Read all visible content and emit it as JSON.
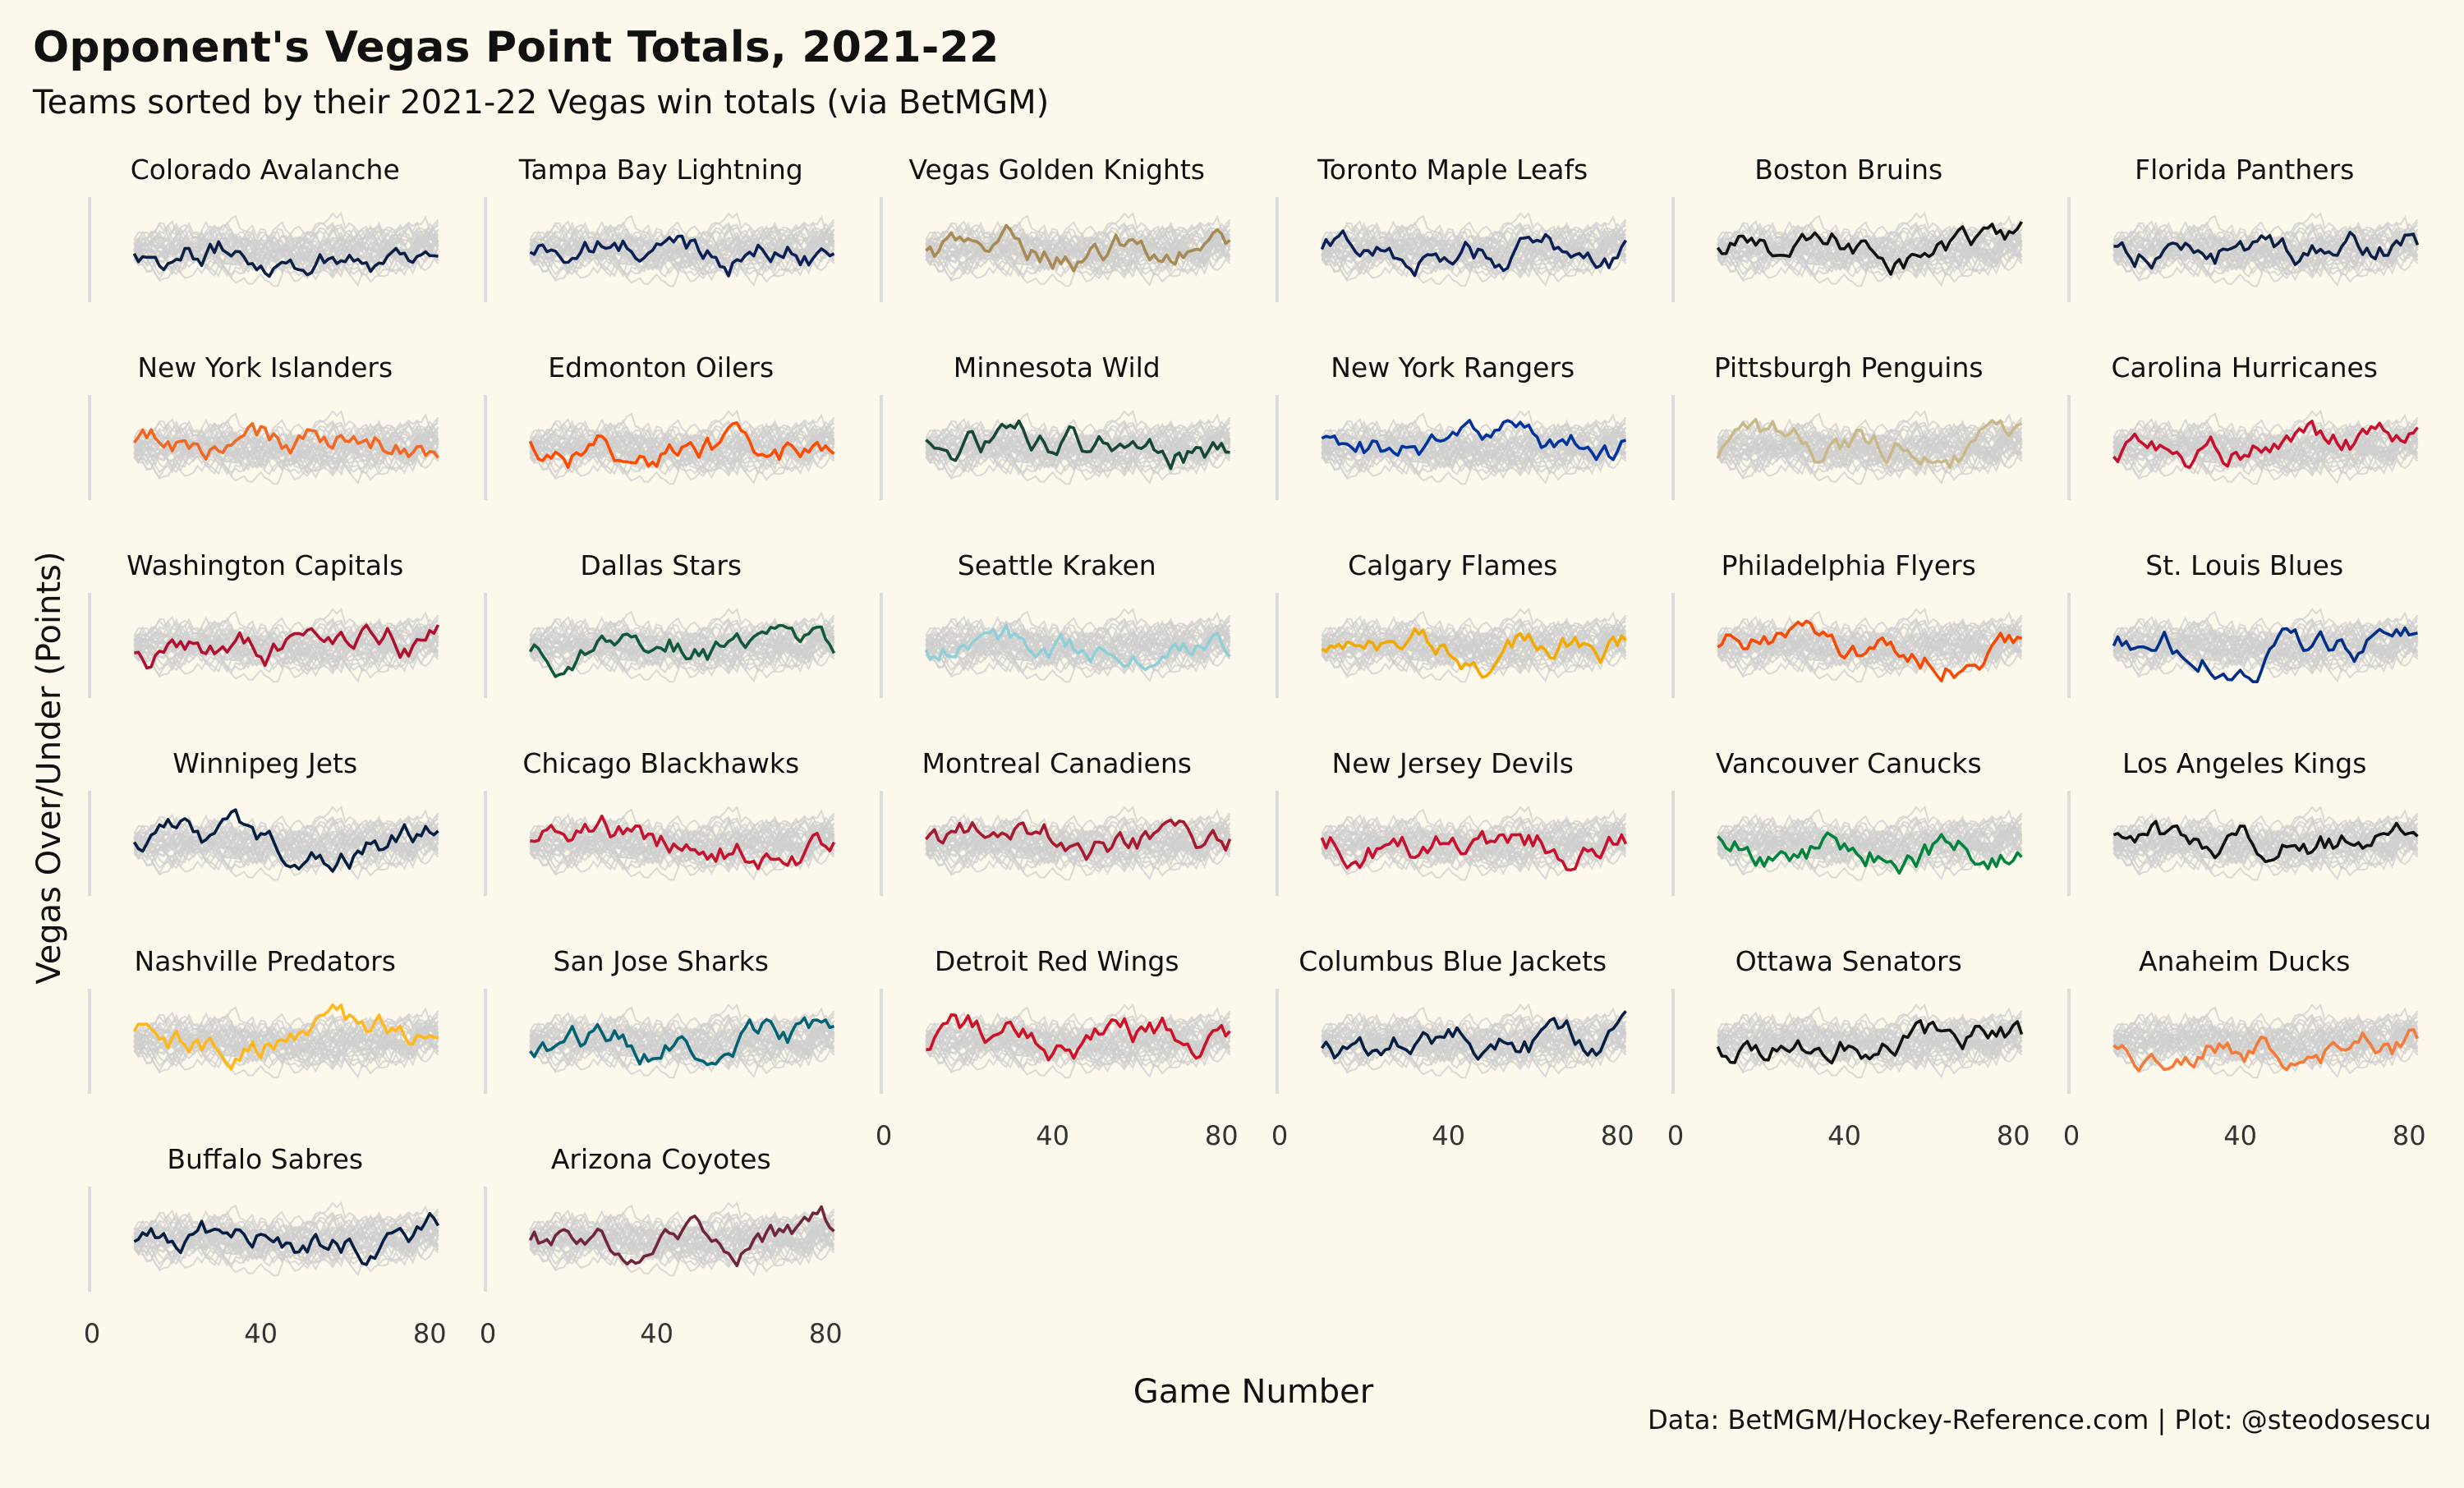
{
  "chart_data": {
    "type": "line",
    "title": "Opponent's Vegas Point Totals, 2021-22",
    "subtitle": "Teams sorted by their 2021-22 Vegas win totals (via BetMGM)",
    "xlabel": "Game Number",
    "ylabel": "Vegas Over/Under (Points)",
    "caption": "Data: BetMGM/Hockey-Reference.com | Plot: @steodosescu",
    "xlim": [
      0,
      82
    ],
    "x_ticks": [
      0,
      40,
      80
    ],
    "grid": false,
    "background_color": "#fdf8ec",
    "context_line_color": "#cfcfcf",
    "facets": [
      {
        "team": "Colorado Avalanche",
        "color": "#0b1f44"
      },
      {
        "team": "Tampa Bay Lightning",
        "color": "#0a1f55"
      },
      {
        "team": "Vegas Golden Knights",
        "color": "#a88a55"
      },
      {
        "team": "Toronto Maple Leafs",
        "color": "#0a1f55"
      },
      {
        "team": "Boston Bruins",
        "color": "#111111"
      },
      {
        "team": "Florida Panthers",
        "color": "#0b1f44"
      },
      {
        "team": "New York Islanders",
        "color": "#f26722"
      },
      {
        "team": "Edmonton Oilers",
        "color": "#fc4c02"
      },
      {
        "team": "Minnesota Wild",
        "color": "#154734"
      },
      {
        "team": "New York Rangers",
        "color": "#0033a0"
      },
      {
        "team": "Pittsburgh Penguins",
        "color": "#c9b98a"
      },
      {
        "team": "Carolina Hurricanes",
        "color": "#c8102e"
      },
      {
        "team": "Washington Capitals",
        "color": "#b0102e"
      },
      {
        "team": "Dallas Stars",
        "color": "#10583a"
      },
      {
        "team": "Seattle Kraken",
        "color": "#8fd0d8"
      },
      {
        "team": "Calgary Flames",
        "color": "#f2a900"
      },
      {
        "team": "Philadelphia Flyers",
        "color": "#f74902"
      },
      {
        "team": "St. Louis Blues",
        "color": "#002f87"
      },
      {
        "team": "Winnipeg Jets",
        "color": "#041e42"
      },
      {
        "team": "Chicago Blackhawks",
        "color": "#c4122f"
      },
      {
        "team": "Montreal Canadiens",
        "color": "#a6192e"
      },
      {
        "team": "New Jersey Devils",
        "color": "#c8102e"
      },
      {
        "team": "Vancouver Canucks",
        "color": "#00843d"
      },
      {
        "team": "Los Angeles Kings",
        "color": "#111111"
      },
      {
        "team": "Nashville Predators",
        "color": "#ffb81c"
      },
      {
        "team": "San Jose Sharks",
        "color": "#006272"
      },
      {
        "team": "Detroit Red Wings",
        "color": "#ce1126"
      },
      {
        "team": "Columbus Blue Jackets",
        "color": "#041e42"
      },
      {
        "team": "Ottawa Senators",
        "color": "#111111"
      },
      {
        "team": "Anaheim Ducks",
        "color": "#f47a38"
      },
      {
        "team": "Buffalo Sabres",
        "color": "#041e42"
      },
      {
        "team": "Arizona Coyotes",
        "color": "#6f263d"
      }
    ]
  }
}
